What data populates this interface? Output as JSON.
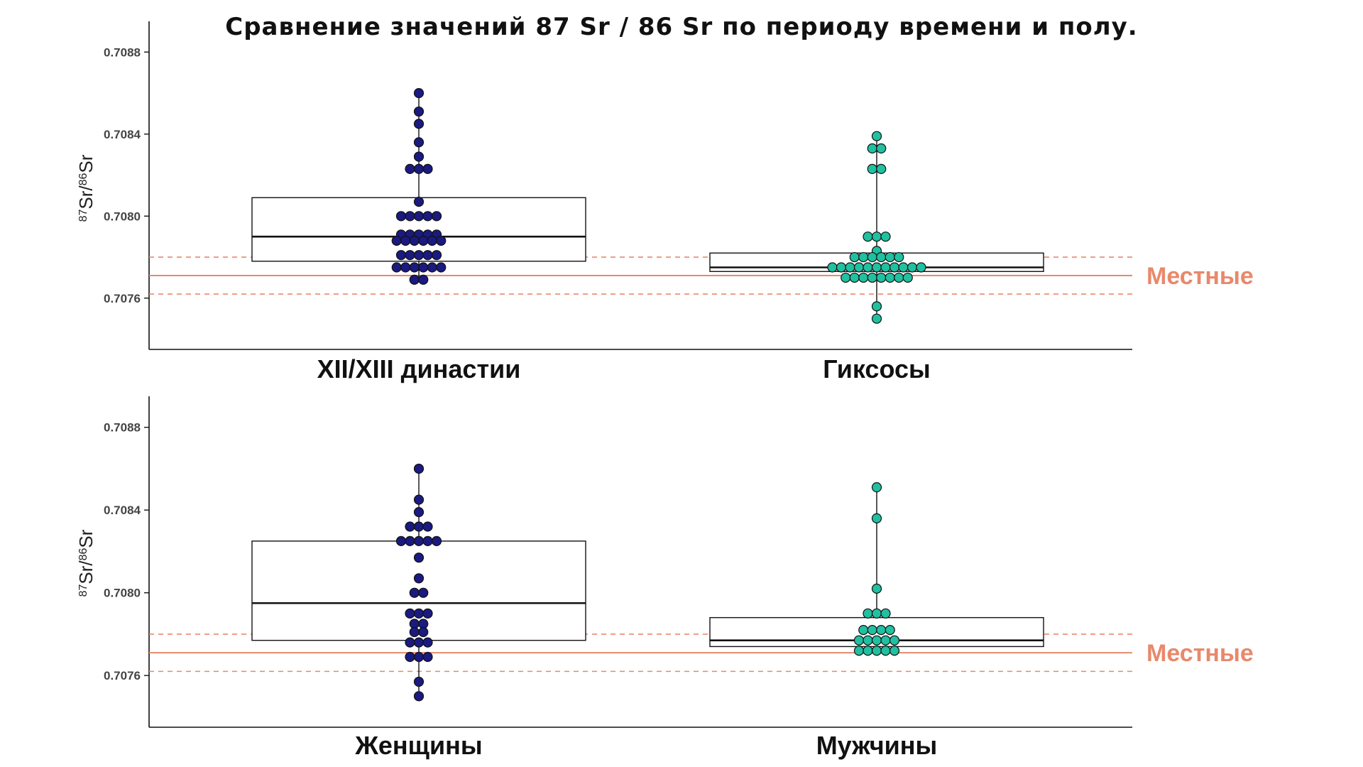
{
  "title": "Сравнение значений 87 Sr / 86 Sr по периоду времени и полу.",
  "reference": {
    "label": "Местные",
    "line_value": 0.70771,
    "band": [
      0.70762,
      0.7078
    ],
    "color": "#e8896b"
  },
  "ylabel": {
    "sup1": "87",
    "main1": "Sr/",
    "sup2": "86",
    "main2": "Sr"
  },
  "chart_data": [
    {
      "type": "box+dotplot",
      "ylim": [
        0.70735,
        0.70895
      ],
      "yticks": [
        0.7076,
        0.708,
        0.7084,
        0.7088
      ],
      "ytick_labels": [
        "0.7076",
        "0.7080",
        "0.7084",
        "0.7088"
      ],
      "categories": [
        "XII/XIII династии",
        "Гиксосы"
      ],
      "colors": [
        "#1a1a80",
        "#20c0a0"
      ],
      "boxes": [
        {
          "q1": 0.70778,
          "median": 0.7079,
          "q3": 0.70809
        },
        {
          "q1": 0.70773,
          "median": 0.70775,
          "q3": 0.70782
        }
      ],
      "points": [
        [
          0.7086,
          0.70851,
          0.70845,
          0.70836,
          0.70829,
          0.70823,
          0.70823,
          0.70823,
          0.70807,
          0.708,
          0.708,
          0.708,
          0.708,
          0.708,
          0.70791,
          0.70791,
          0.70791,
          0.70791,
          0.70791,
          0.70788,
          0.70788,
          0.70788,
          0.70788,
          0.70788,
          0.70788,
          0.70781,
          0.70781,
          0.70781,
          0.70781,
          0.70781,
          0.70775,
          0.70775,
          0.70775,
          0.70775,
          0.70775,
          0.70775,
          0.70769,
          0.70769
        ],
        [
          0.70839,
          0.70833,
          0.70833,
          0.70823,
          0.70823,
          0.7079,
          0.7079,
          0.7079,
          0.70783,
          0.7078,
          0.7078,
          0.7078,
          0.7078,
          0.7078,
          0.7078,
          0.70775,
          0.70775,
          0.70775,
          0.70775,
          0.70775,
          0.70775,
          0.70775,
          0.70775,
          0.70775,
          0.70775,
          0.70775,
          0.7077,
          0.7077,
          0.7077,
          0.7077,
          0.7077,
          0.7077,
          0.7077,
          0.7077,
          0.70756,
          0.7075
        ]
      ]
    },
    {
      "type": "box+dotplot",
      "ylim": [
        0.70735,
        0.70895
      ],
      "yticks": [
        0.7076,
        0.708,
        0.7084,
        0.7088
      ],
      "ytick_labels": [
        "0.7076",
        "0.7080",
        "0.7084",
        "0.7088"
      ],
      "categories": [
        "Женщины",
        "Мужчины"
      ],
      "colors": [
        "#1a1a80",
        "#20c0a0"
      ],
      "boxes": [
        {
          "q1": 0.70777,
          "median": 0.70795,
          "q3": 0.70825
        },
        {
          "q1": 0.70774,
          "median": 0.70777,
          "q3": 0.70788
        }
      ],
      "points": [
        [
          0.7086,
          0.70845,
          0.70839,
          0.70832,
          0.70832,
          0.70832,
          0.70825,
          0.70825,
          0.70825,
          0.70825,
          0.70825,
          0.70817,
          0.70807,
          0.708,
          0.708,
          0.7079,
          0.7079,
          0.7079,
          0.70785,
          0.70785,
          0.70781,
          0.70781,
          0.70776,
          0.70776,
          0.70776,
          0.70769,
          0.70769,
          0.70769,
          0.70757,
          0.7075
        ],
        [
          0.70851,
          0.70836,
          0.70802,
          0.7079,
          0.7079,
          0.7079,
          0.70782,
          0.70782,
          0.70782,
          0.70782,
          0.70777,
          0.70777,
          0.70777,
          0.70777,
          0.70777,
          0.70772,
          0.70772,
          0.70772,
          0.70772,
          0.70772
        ]
      ]
    }
  ]
}
